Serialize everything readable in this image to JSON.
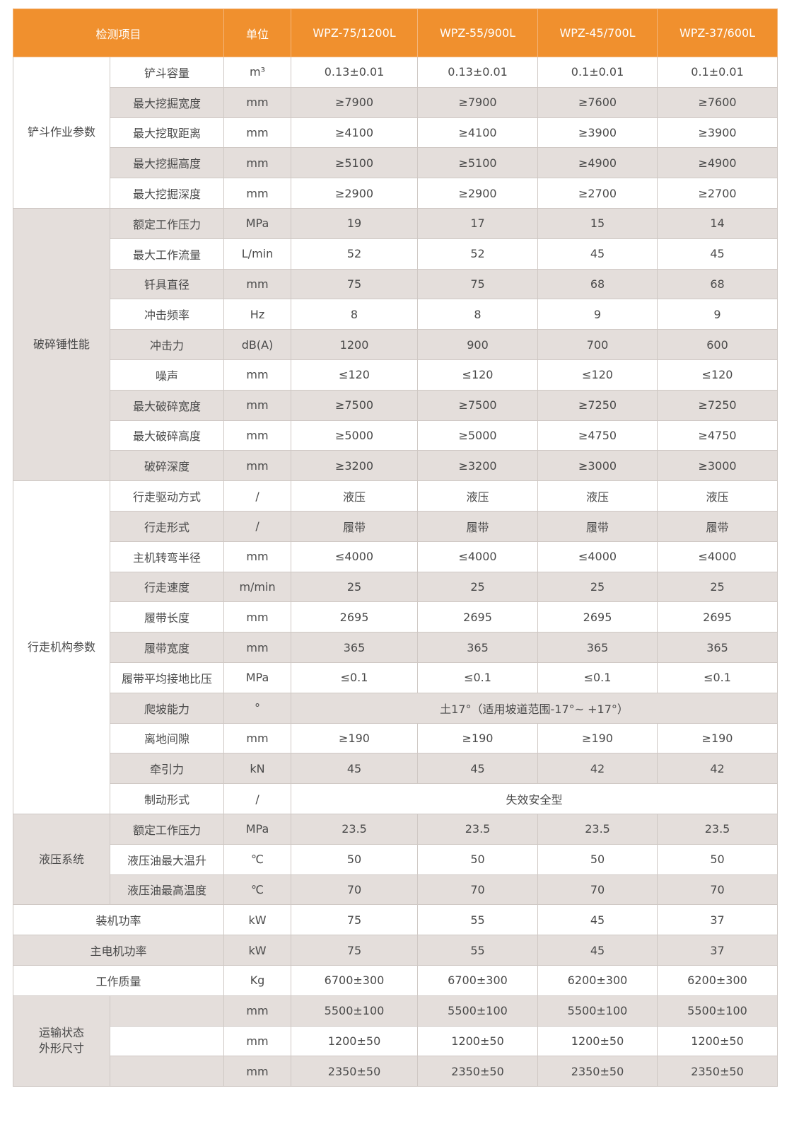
{
  "colors": {
    "header": "#f0902e",
    "stripe": "#e4dedb",
    "border": "#cfc8c4"
  },
  "header": {
    "item": "检测项目",
    "unit": "单位",
    "models": [
      "WPZ-75/1200L",
      "WPZ-55/900L",
      "WPZ-45/700L",
      "WPZ-37/600L"
    ]
  },
  "groups": [
    {
      "label": "铲斗作业参数",
      "rows": [
        {
          "item": "铲斗容量",
          "unit": "m³",
          "values": [
            "0.13±0.01",
            "0.13±0.01",
            "0.1±0.01",
            "0.1±0.01"
          ]
        },
        {
          "item": "最大挖掘宽度",
          "unit": "mm",
          "values": [
            "≥7900",
            "≥7900",
            "≥7600",
            "≥7600"
          ]
        },
        {
          "item": "最大挖取距离",
          "unit": "mm",
          "values": [
            "≥4100",
            "≥4100",
            "≥3900",
            "≥3900"
          ]
        },
        {
          "item": "最大挖掘高度",
          "unit": "mm",
          "values": [
            "≥5100",
            "≥5100",
            "≥4900",
            "≥4900"
          ]
        },
        {
          "item": "最大挖掘深度",
          "unit": "mm",
          "values": [
            "≥2900",
            "≥2900",
            "≥2700",
            "≥2700"
          ]
        }
      ]
    },
    {
      "label": "破碎锤性能",
      "rows": [
        {
          "item": "额定工作压力",
          "unit": "MPa",
          "values": [
            "19",
            "17",
            "15",
            "14"
          ]
        },
        {
          "item": "最大工作流量",
          "unit": "L/min",
          "values": [
            "52",
            "52",
            "45",
            "45"
          ]
        },
        {
          "item": "钎具直径",
          "unit": "mm",
          "values": [
            "75",
            "75",
            "68",
            "68"
          ]
        },
        {
          "item": "冲击频率",
          "unit": "Hz",
          "values": [
            "8",
            "8",
            "9",
            "9"
          ]
        },
        {
          "item": "冲击力",
          "unit": "dB(A)",
          "values": [
            "1200",
            "900",
            "700",
            "600"
          ]
        },
        {
          "item": "噪声",
          "unit": "mm",
          "values": [
            "≤120",
            "≤120",
            "≤120",
            "≤120"
          ]
        },
        {
          "item": "最大破碎宽度",
          "unit": "mm",
          "values": [
            "≥7500",
            "≥7500",
            "≥7250",
            "≥7250"
          ]
        },
        {
          "item": "最大破碎高度",
          "unit": "mm",
          "values": [
            "≥5000",
            "≥5000",
            "≥4750",
            "≥4750"
          ]
        },
        {
          "item": "破碎深度",
          "unit": "mm",
          "values": [
            "≥3200",
            "≥3200",
            "≥3000",
            "≥3000"
          ]
        }
      ]
    },
    {
      "label": "行走机构参数",
      "rows": [
        {
          "item": "行走驱动方式",
          "unit": "/",
          "values": [
            "液压",
            "液压",
            "液压",
            "液压"
          ]
        },
        {
          "item": "行走形式",
          "unit": "/",
          "values": [
            "履带",
            "履带",
            "履带",
            "履带"
          ]
        },
        {
          "item": "主机转弯半径",
          "unit": "mm",
          "values": [
            "≤4000",
            "≤4000",
            "≤4000",
            "≤4000"
          ]
        },
        {
          "item": "行走速度",
          "unit": "m/min",
          "values": [
            "25",
            "25",
            "25",
            "25"
          ]
        },
        {
          "item": "履带长度",
          "unit": "mm",
          "values": [
            "2695",
            "2695",
            "2695",
            "2695"
          ]
        },
        {
          "item": "履带宽度",
          "unit": "mm",
          "values": [
            "365",
            "365",
            "365",
            "365"
          ]
        },
        {
          "item": "履带平均接地比压",
          "unit": "MPa",
          "values": [
            "≤0.1",
            "≤0.1",
            "≤0.1",
            "≤0.1"
          ]
        },
        {
          "item": "爬坡能力",
          "unit": "°",
          "values": [
            "土17°（适用坡道范围-17°~ +17°）"
          ]
        },
        {
          "item": "离地间隙",
          "unit": "mm",
          "values": [
            "≥190",
            "≥190",
            "≥190",
            "≥190"
          ]
        },
        {
          "item": "牵引力",
          "unit": "kN",
          "values": [
            "45",
            "45",
            "42",
            "42"
          ]
        },
        {
          "item": "制动形式",
          "unit": "/",
          "values": [
            "失效安全型"
          ]
        }
      ]
    },
    {
      "label": "液压系统",
      "rows": [
        {
          "item": "额定工作压力",
          "unit": "MPa",
          "values": [
            "23.5",
            "23.5",
            "23.5",
            "23.5"
          ]
        },
        {
          "item": "液压油最大温升",
          "unit": "℃",
          "values": [
            "50",
            "50",
            "50",
            "50"
          ]
        },
        {
          "item": "液压油最高温度",
          "unit": "℃",
          "values": [
            "70",
            "70",
            "70",
            "70"
          ]
        }
      ]
    },
    {
      "label": "装机功率",
      "single": true,
      "rows": [
        {
          "unit": "kW",
          "values": [
            "75",
            "55",
            "45",
            "37"
          ]
        }
      ]
    },
    {
      "label": "主电机功率",
      "single": true,
      "rows": [
        {
          "unit": "kW",
          "values": [
            "75",
            "55",
            "45",
            "37"
          ]
        }
      ]
    },
    {
      "label": "工作质量",
      "single": true,
      "rows": [
        {
          "unit": "Kg",
          "values": [
            "6700±300",
            "6700±300",
            "6200±300",
            "6200±300"
          ]
        }
      ]
    },
    {
      "label": "运输状态\n外形尺寸",
      "rows": [
        {
          "item": "",
          "unit": "mm",
          "values": [
            "5500±100",
            "5500±100",
            "5500±100",
            "5500±100"
          ]
        },
        {
          "item": "",
          "unit": "mm",
          "values": [
            "1200±50",
            "1200±50",
            "1200±50",
            "1200±50"
          ]
        },
        {
          "item": "",
          "unit": "mm",
          "values": [
            "2350±50",
            "2350±50",
            "2350±50",
            "2350±50"
          ]
        }
      ]
    }
  ]
}
